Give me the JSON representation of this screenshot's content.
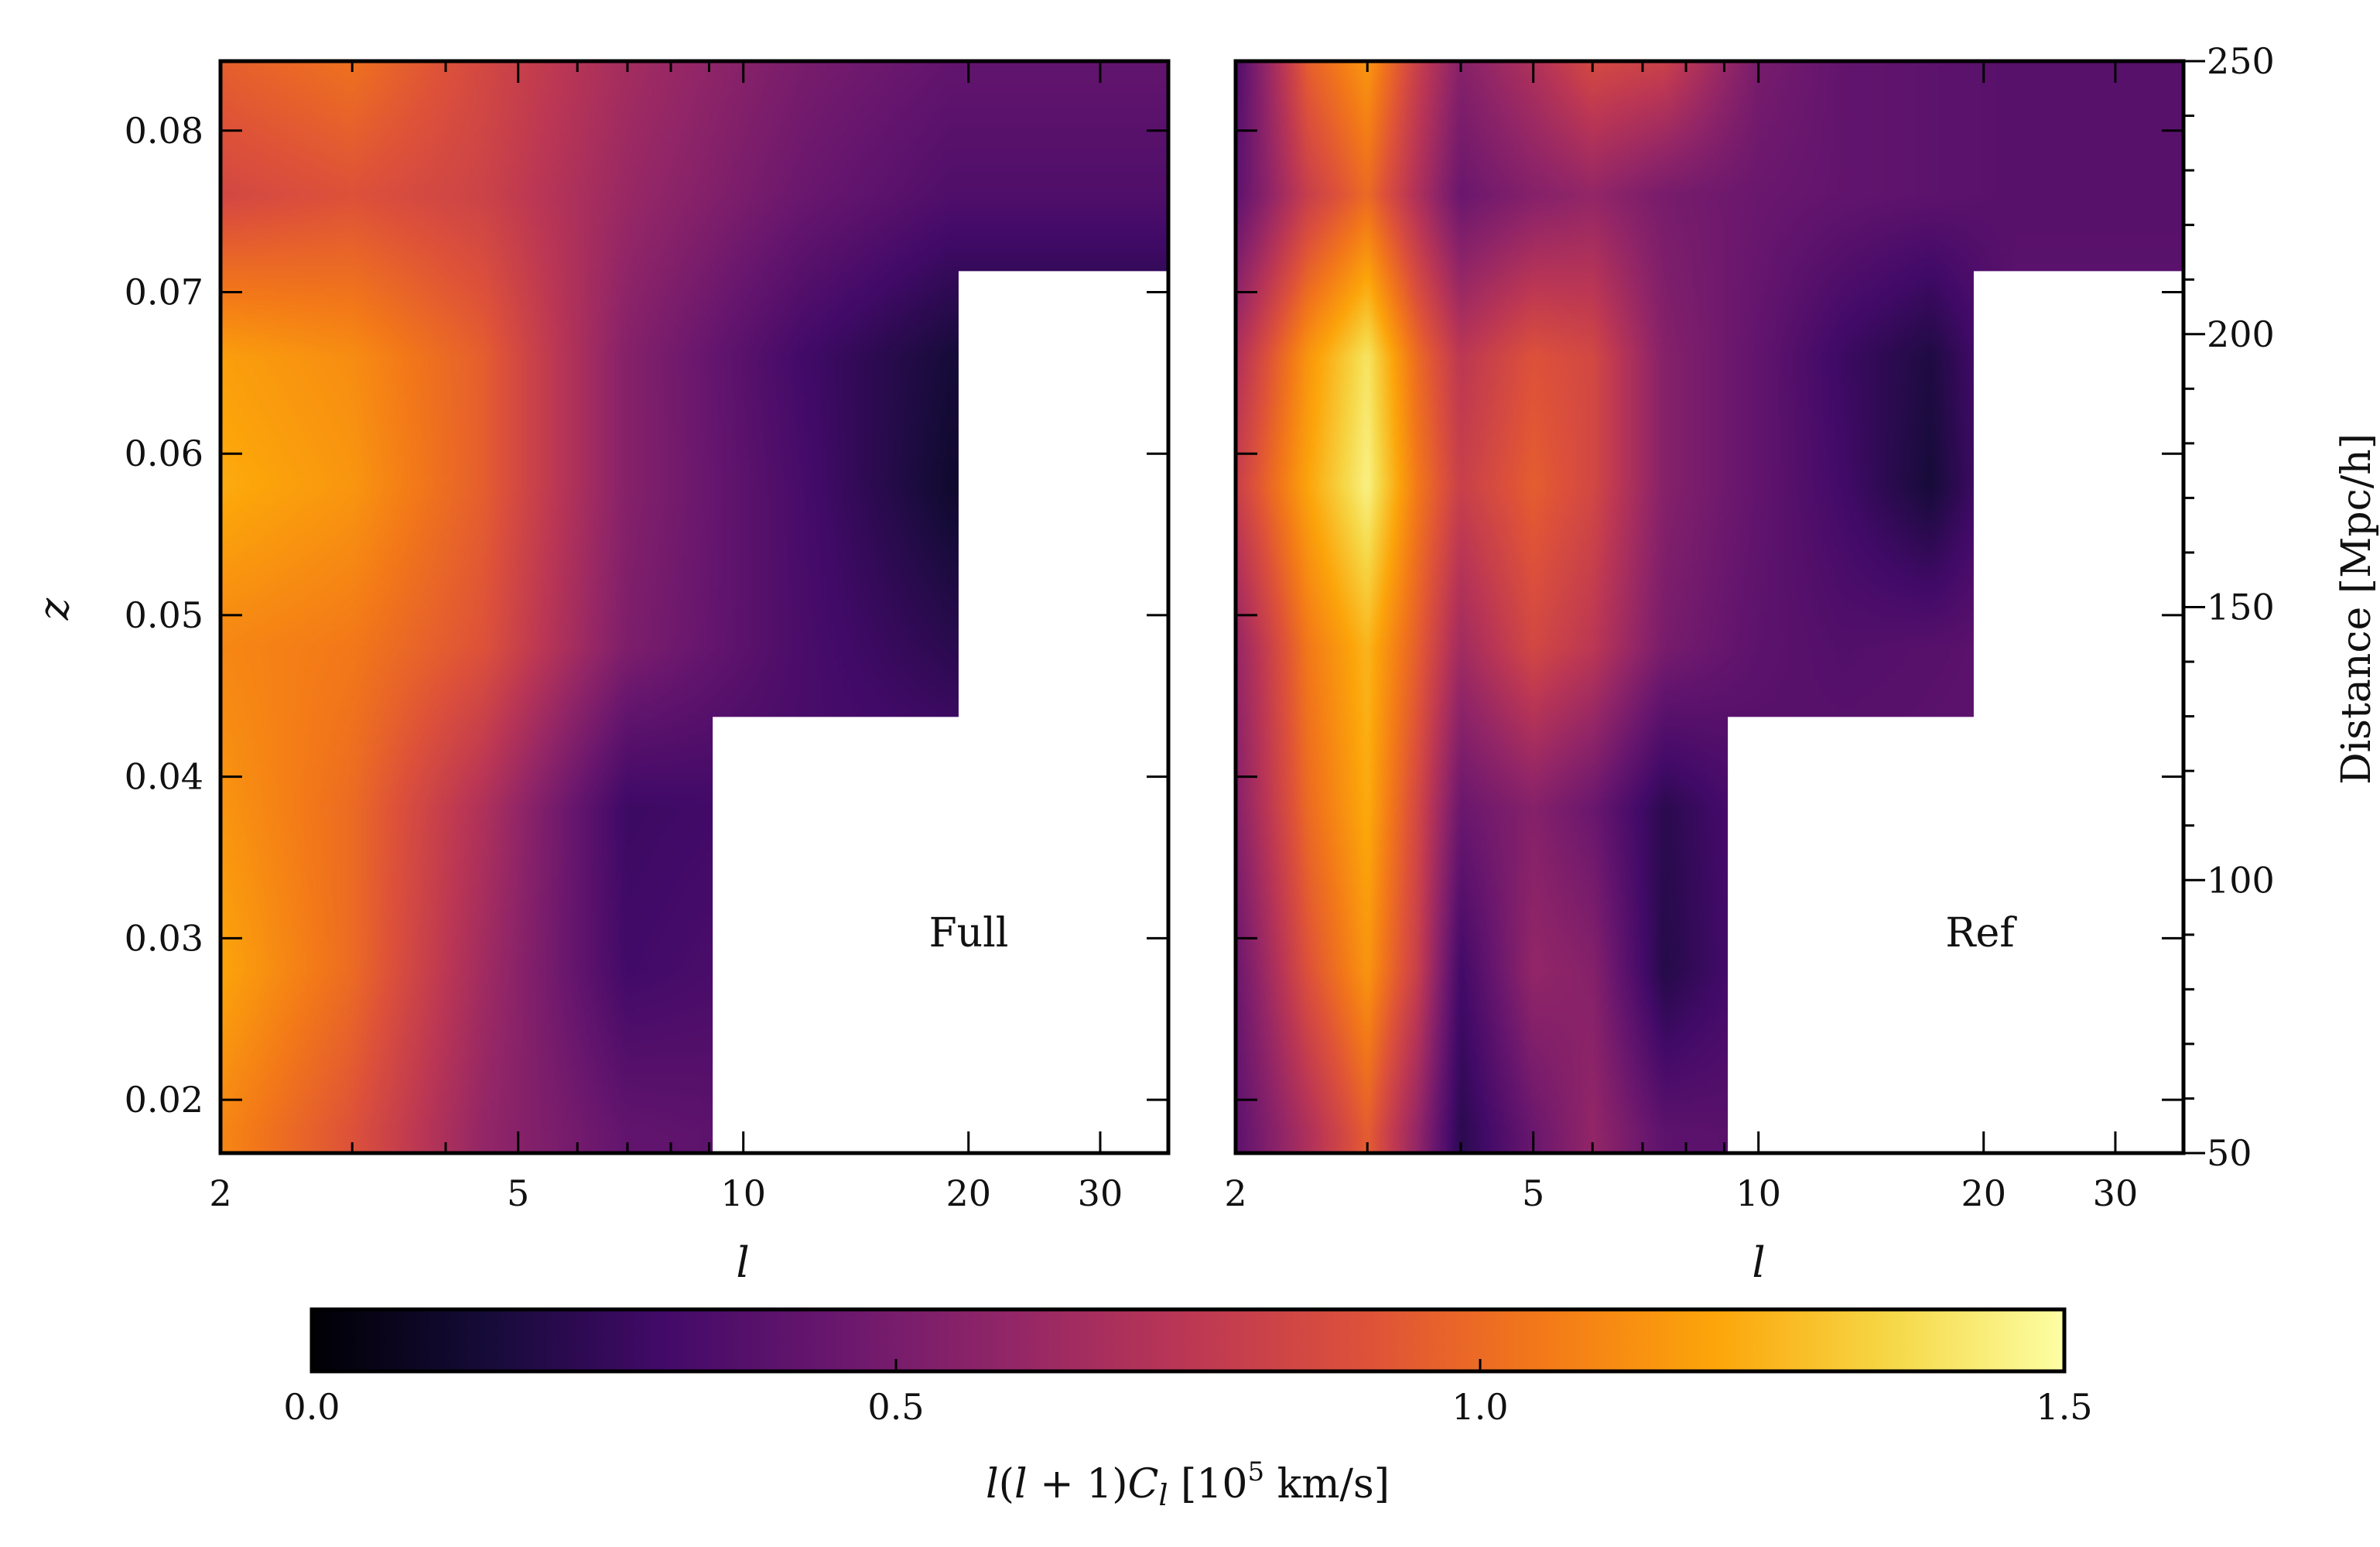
{
  "chart_data": {
    "type": "heatmap",
    "colormap": "inferno",
    "shared": {
      "xlabel": "l",
      "x_scale": "log",
      "xlim": [
        2,
        37
      ],
      "x_ticks": [
        2,
        5,
        10,
        20,
        30
      ],
      "x_tick_labels": [
        "2",
        "5",
        "10",
        "20",
        "30"
      ],
      "ylabel": "z",
      "ylim": [
        0.0167,
        0.0843
      ],
      "y_ticks": [
        0.02,
        0.03,
        0.04,
        0.05,
        0.06,
        0.07,
        0.08
      ],
      "y_tick_labels": [
        "0.02",
        "0.03",
        "0.04",
        "0.05",
        "0.06",
        "0.07",
        "0.08"
      ],
      "right_ylabel": "Distance [Mpc/h]",
      "right_y_ticks": [
        50,
        100,
        150,
        200,
        250
      ],
      "right_y_tick_labels": [
        "50",
        "100",
        "150",
        "200",
        "250"
      ],
      "masked_region_steps": [
        {
          "z_below": 0.0437,
          "l_above": 9.1
        },
        {
          "z_below": 0.0713,
          "l_above": 19.4
        }
      ]
    },
    "panels": [
      {
        "label": "Full",
        "grid": {
          "l": [
            2,
            3,
            4.5,
            7,
            12,
            19
          ],
          "z": [
            0.018,
            0.028,
            0.038,
            0.048,
            0.058,
            0.066,
            0.076,
            0.084
          ],
          "values": [
            [
              1.1,
              0.9,
              0.6,
              0.42,
              0.38,
              0.4
            ],
            [
              1.2,
              1.0,
              0.65,
              0.3,
              0.36,
              0.4
            ],
            [
              1.15,
              1.0,
              0.7,
              0.28,
              0.32,
              0.35
            ],
            [
              1.1,
              1.05,
              0.9,
              0.52,
              0.33,
              0.22
            ],
            [
              1.22,
              1.15,
              0.95,
              0.55,
              0.32,
              0.12
            ],
            [
              1.18,
              1.12,
              0.95,
              0.55,
              0.3,
              0.15
            ],
            [
              0.85,
              0.9,
              0.82,
              0.62,
              0.45,
              0.35
            ],
            [
              0.95,
              1.02,
              0.85,
              0.66,
              0.5,
              0.42
            ]
          ]
        }
      },
      {
        "label": "Ref",
        "grid": {
          "l": [
            2,
            2.5,
            3,
            3.5,
            4,
            5,
            6,
            7.5,
            10,
            13,
            17,
            22,
            30
          ],
          "z": [
            0.018,
            0.028,
            0.038,
            0.048,
            0.058,
            0.066,
            0.076,
            0.084
          ],
          "values": [
            [
              0.4,
              0.7,
              0.95,
              0.6,
              0.22,
              0.45,
              0.6,
              0.4,
              0.38,
              0.4,
              0.4,
              0.4,
              0.4
            ],
            [
              0.45,
              0.9,
              1.15,
              0.8,
              0.3,
              0.6,
              0.55,
              0.2,
              0.36,
              0.4,
              0.4,
              0.4,
              0.4
            ],
            [
              0.55,
              1.0,
              1.22,
              0.85,
              0.45,
              0.55,
              0.45,
              0.22,
              0.36,
              0.4,
              0.4,
              0.4,
              0.4
            ],
            [
              0.6,
              1.05,
              1.25,
              0.95,
              0.65,
              0.85,
              0.75,
              0.5,
              0.4,
              0.36,
              0.38,
              0.4,
              0.4
            ],
            [
              0.8,
              1.2,
              1.45,
              1.05,
              0.8,
              0.95,
              0.85,
              0.55,
              0.42,
              0.3,
              0.15,
              0.4,
              0.4
            ],
            [
              0.7,
              1.15,
              1.4,
              1.0,
              0.75,
              0.9,
              0.85,
              0.55,
              0.42,
              0.28,
              0.18,
              0.4,
              0.4
            ],
            [
              0.4,
              0.8,
              1.0,
              0.7,
              0.45,
              0.55,
              0.6,
              0.5,
              0.45,
              0.42,
              0.4,
              0.38,
              0.38
            ],
            [
              0.35,
              0.95,
              1.15,
              0.8,
              0.55,
              0.7,
              0.85,
              0.8,
              0.5,
              0.42,
              0.4,
              0.38,
              0.38
            ]
          ]
        }
      }
    ],
    "colorbar": {
      "label": "l(l+1)C_l [10^5 km/s]",
      "range": [
        0.0,
        1.5
      ],
      "ticks": [
        0.0,
        0.5,
        1.0,
        1.5
      ],
      "tick_labels": [
        "0.0",
        "0.5",
        "1.0",
        "1.5"
      ]
    }
  }
}
